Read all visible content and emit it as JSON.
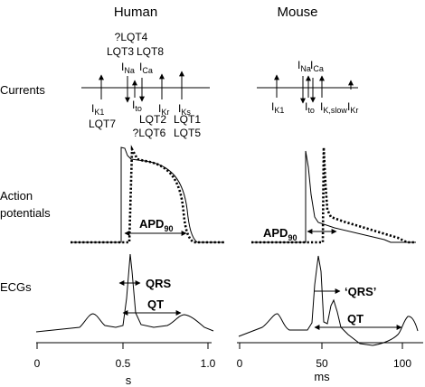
{
  "columns": {
    "human": "Human",
    "mouse": "Mouse"
  },
  "row_labels": {
    "currents": "Currents",
    "ap_line1": "Action",
    "ap_line2": "potentials",
    "ecgs": "ECGs"
  },
  "human_currents": {
    "above": {
      "l1": "?LQT4",
      "l2a": "LQT3",
      "l2b": "LQT8"
    },
    "ina": {
      "main": "I",
      "sub": "Na"
    },
    "ica": {
      "main": "I",
      "sub": "Ca"
    },
    "ik1": {
      "main": "I",
      "sub": "K1"
    },
    "ito": {
      "main": "I",
      "sub": "to"
    },
    "ikr": {
      "main": "I",
      "sub": "Kr"
    },
    "iks": {
      "main": "I",
      "sub": "Ks"
    },
    "below": {
      "lqt7": "LQT7",
      "lqt2": "LQT2",
      "lqt1": "LQT1",
      "lqt6": "?LQT6",
      "lqt5": "LQT5"
    }
  },
  "mouse_currents": {
    "ina": {
      "main": "I",
      "sub": "Na"
    },
    "ica": {
      "main": "I",
      "sub": "Ca"
    },
    "ik1": {
      "main": "I",
      "sub": "K1"
    },
    "ito": {
      "main": "I",
      "sub": "to"
    },
    "ikslow": {
      "main": "I",
      "sub": "K,slow"
    },
    "ikr": {
      "main": "I",
      "sub": "Kr"
    }
  },
  "apd": {
    "main": "APD",
    "sub": "90"
  },
  "ecg_labels": {
    "human_qrs": "QRS",
    "human_qt": "QT",
    "mouse_qrs": "‘QRS’",
    "mouse_qt": "QT"
  },
  "axes": {
    "human": {
      "ticks": [
        "0",
        "0.5",
        "1.0"
      ],
      "unit": "s"
    },
    "mouse": {
      "ticks": [
        "0",
        "50",
        "100"
      ],
      "unit": "ms"
    }
  }
}
